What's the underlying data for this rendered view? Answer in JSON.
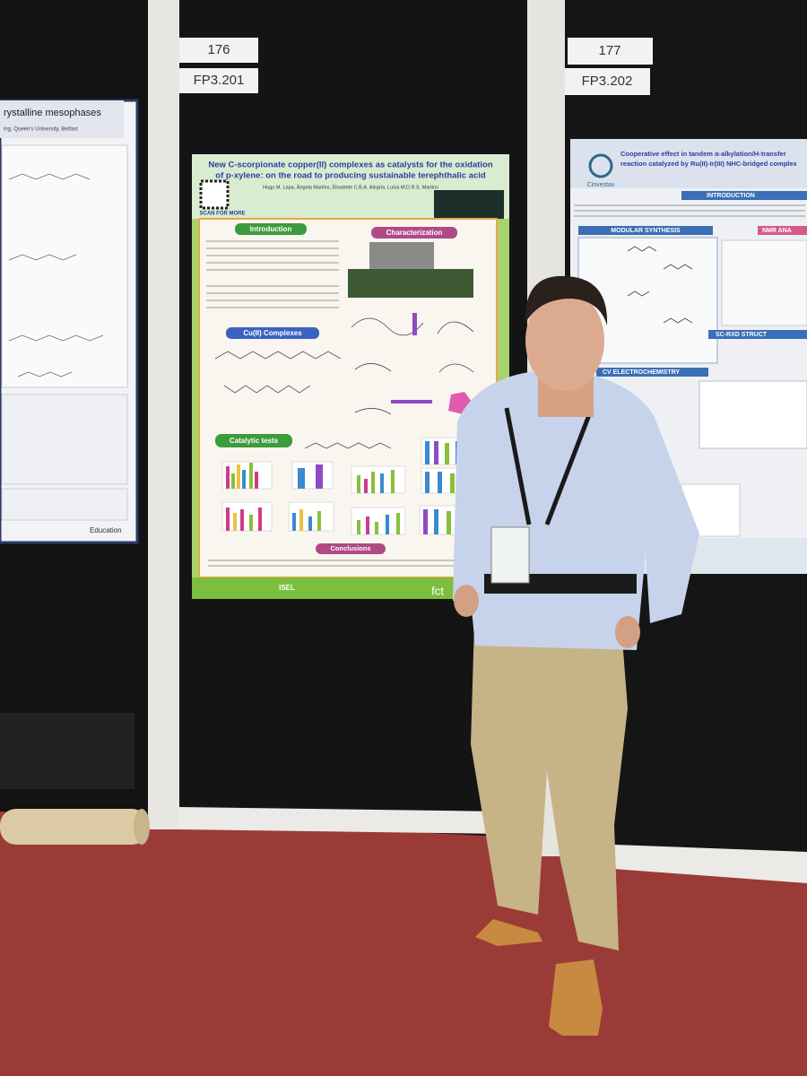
{
  "booth_labels": [
    {
      "number": "176",
      "code": "FP3.201"
    },
    {
      "number": "177",
      "code": "FP3.202"
    }
  ],
  "posters": {
    "left": {
      "title": "rystalline mesophases",
      "affiliation": "ing, Queen's University, Belfast",
      "footer": "Education"
    },
    "center": {
      "title_lines": [
        "New C-scorpionate copper(II) complexes as catalysts for the oxidation",
        "of p-xylene: on the road to producing sustainable terephthalic acid"
      ],
      "authors": "Hugo M. Lapa, Ângela Martins, Elisabete C.B.A. Alegria, Luísa M.D.R.S. Martins",
      "qr_caption": "SCAN FOR MORE",
      "sections": [
        "Introduction",
        "Characterization",
        "Cu(II) Complexes",
        "Catalytic tests",
        "Conclusions"
      ],
      "logos": [
        "ISEL",
        "fct"
      ]
    },
    "right": {
      "title_lines": [
        "Cooperative effect in tandem α-alkylation/H-transfer",
        "reaction catalyzed by Ru(II)-Ir(III) NHC-bridged complex"
      ],
      "institution": "Cinvestav",
      "sections": [
        "INTRODUCTION",
        "MODULAR SYNTHESIS",
        "NMR ANA",
        "SC-RXD STRUCT",
        "CV ELECTROCHEMISTRY"
      ]
    }
  }
}
